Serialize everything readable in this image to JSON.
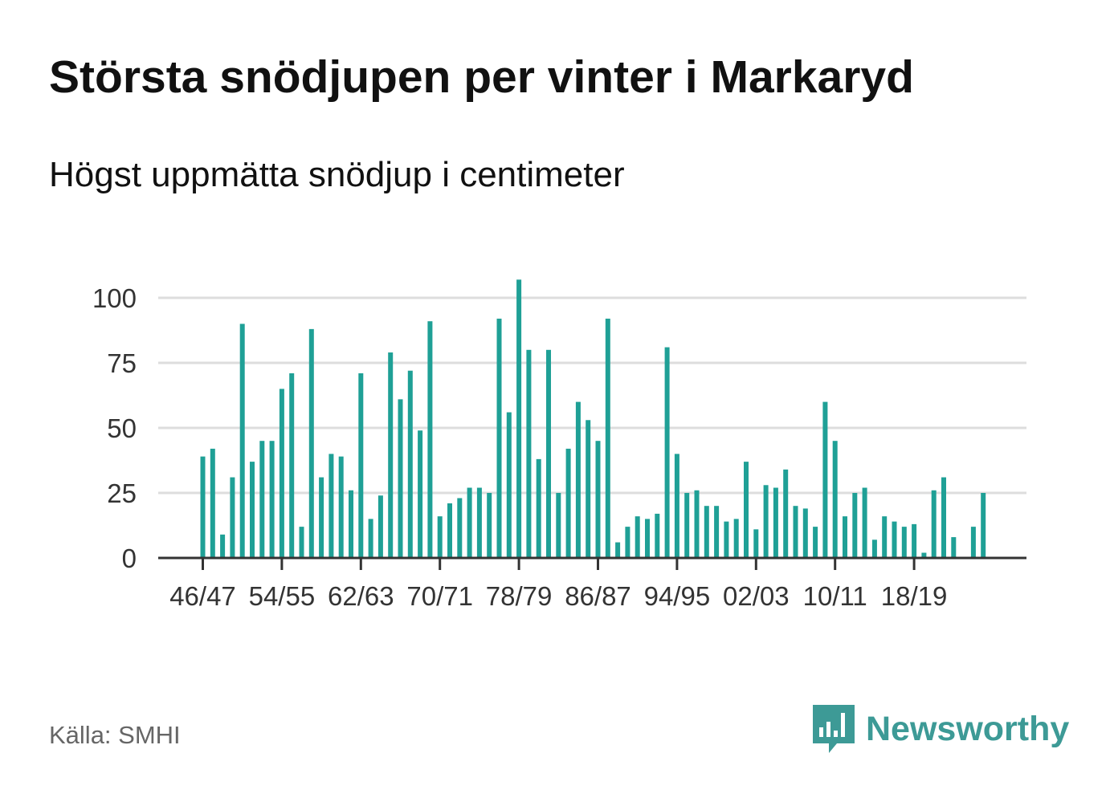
{
  "chart_data": {
    "type": "bar",
    "title": "Största snödjupen per vinter i Markaryd",
    "subtitle": "Högst uppmätta snödjup i centimeter",
    "xlabel": "",
    "ylabel": "",
    "ylim": [
      0,
      110
    ],
    "yticks": [
      0,
      25,
      50,
      75,
      100
    ],
    "grid": true,
    "bar_color": "#1fa096",
    "x_tick_labels": [
      "46/47",
      "54/55",
      "62/63",
      "70/71",
      "78/79",
      "86/87",
      "94/95",
      "02/03",
      "10/11",
      "18/19"
    ],
    "x_tick_indices": [
      0,
      8,
      16,
      24,
      32,
      40,
      48,
      56,
      64,
      72
    ],
    "values": [
      39,
      42,
      9,
      31,
      90,
      37,
      45,
      45,
      65,
      71,
      12,
      88,
      31,
      40,
      39,
      26,
      71,
      15,
      24,
      79,
      61,
      72,
      49,
      91,
      16,
      21,
      23,
      27,
      27,
      25,
      92,
      56,
      107,
      80,
      38,
      80,
      25,
      42,
      60,
      53,
      45,
      92,
      6,
      12,
      16,
      15,
      17,
      81,
      40,
      25,
      26,
      20,
      20,
      14,
      15,
      37,
      11,
      28,
      27,
      34,
      20,
      19,
      12,
      60,
      45,
      16,
      25,
      27,
      7,
      16,
      14,
      12,
      13,
      2,
      26,
      31,
      8,
      0,
      12,
      25
    ]
  },
  "source": "Källa: SMHI",
  "brand": {
    "name": "Newsworthy",
    "color": "#3d9a96"
  }
}
